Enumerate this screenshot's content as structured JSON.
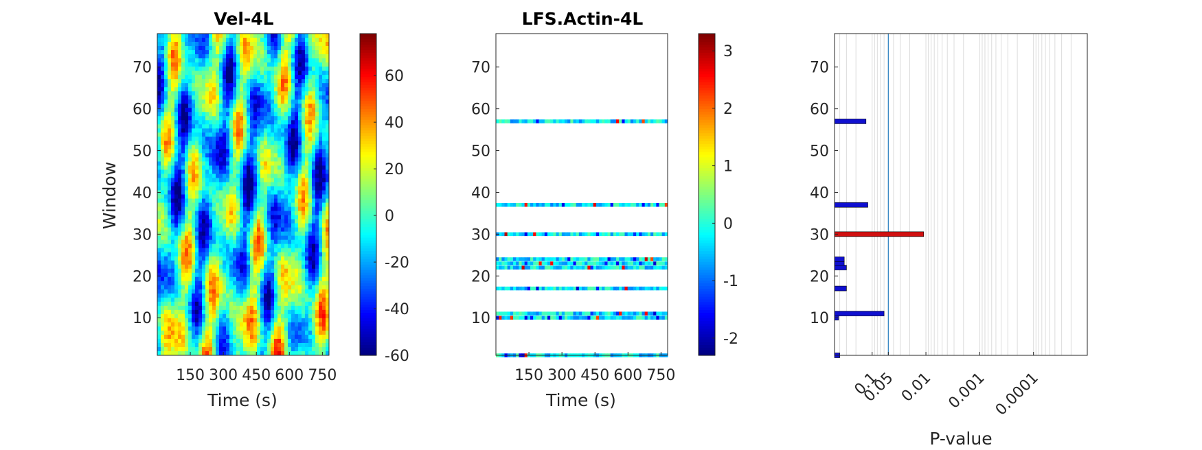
{
  "chart_data": [
    {
      "type": "heatmap",
      "title": "Vel-4L",
      "xlabel": "Time (s)",
      "ylabel": "Window",
      "x_ticks": [
        150,
        300,
        450,
        600,
        750
      ],
      "x_tick_labels": [
        "150",
        "300",
        "450",
        "600",
        "750"
      ],
      "y_ticks": [
        10,
        20,
        30,
        40,
        50,
        60,
        70
      ],
      "y_tick_labels": [
        "10",
        "20",
        "30",
        "40",
        "50",
        "60",
        "70"
      ],
      "ylim": [
        1,
        78
      ],
      "xlim": [
        0,
        780
      ],
      "colormap": "jet",
      "colorbar": {
        "ticks": [
          -60,
          -40,
          -20,
          0,
          20,
          40,
          60
        ],
        "tick_labels": [
          "-60",
          "-40",
          "-20",
          "0",
          "20",
          "40",
          "60"
        ],
        "range": [
          -60,
          78
        ]
      }
    },
    {
      "type": "heatmap",
      "title": "LFS.Actin-4L",
      "xlabel": "Time (s)",
      "x_ticks": [
        150,
        300,
        450,
        600,
        750
      ],
      "x_tick_labels": [
        "150",
        "300",
        "450",
        "600",
        "750"
      ],
      "y_ticks": [
        10,
        20,
        30,
        40,
        50,
        60,
        70
      ],
      "y_tick_labels": [
        "10",
        "20",
        "30",
        "40",
        "50",
        "60",
        "70"
      ],
      "ylim": [
        1,
        78
      ],
      "xlim": [
        0,
        780
      ],
      "colormap": "jet",
      "rows_with_data": [
        1,
        10,
        11,
        17,
        22,
        23,
        24,
        30,
        37,
        57
      ],
      "colorbar": {
        "ticks": [
          -2,
          -1,
          0,
          1,
          2,
          3
        ],
        "tick_labels": [
          "-2",
          "-1",
          "0",
          "1",
          "2",
          "3"
        ],
        "range": [
          -2.3,
          3.3
        ]
      }
    },
    {
      "type": "bar",
      "orientation": "horizontal",
      "xlabel": "P-value",
      "x_scale": "log-reversed",
      "x_ticks": [
        0.1,
        0.05,
        0.01,
        0.001,
        0.0001
      ],
      "x_tick_labels": [
        "0.1",
        "0.05",
        "0.01",
        "0.001",
        "0.0001"
      ],
      "xlim": [
        0.5,
        1e-05
      ],
      "y_ticks": [
        10,
        20,
        30,
        40,
        50,
        60,
        70
      ],
      "y_tick_labels": [
        "10",
        "20",
        "30",
        "40",
        "50",
        "60",
        "70"
      ],
      "ylim": [
        1,
        78
      ],
      "threshold_line": 0.05,
      "grid": true,
      "bars": [
        {
          "window": 1,
          "pvalue": 0.4,
          "color": "#1010d0"
        },
        {
          "window": 10,
          "pvalue": 0.42,
          "color": "#1010d0"
        },
        {
          "window": 11,
          "pvalue": 0.06,
          "color": "#1010d0"
        },
        {
          "window": 17,
          "pvalue": 0.3,
          "color": "#1010d0"
        },
        {
          "window": 22,
          "pvalue": 0.3,
          "color": "#1010d0"
        },
        {
          "window": 23,
          "pvalue": 0.33,
          "color": "#1010d0"
        },
        {
          "window": 24,
          "pvalue": 0.33,
          "color": "#1010d0"
        },
        {
          "window": 30,
          "pvalue": 0.011,
          "color": "#d01010"
        },
        {
          "window": 37,
          "pvalue": 0.12,
          "color": "#1010d0"
        },
        {
          "window": 57,
          "pvalue": 0.13,
          "color": "#1010d0"
        }
      ]
    }
  ]
}
